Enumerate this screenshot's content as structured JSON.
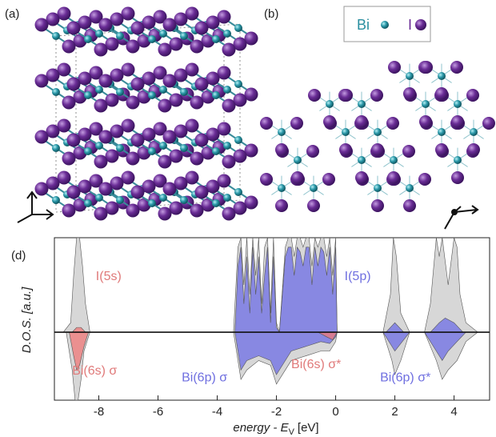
{
  "panels": {
    "a": "(a)",
    "b": "(b)",
    "d": "(d)"
  },
  "legend": {
    "bi": "Bi",
    "i": "I"
  },
  "chart_data": {
    "type": "area",
    "ylabel": "D.O.S. [a.u.]",
    "xlabel": "energy - E",
    "xlabel_sub": "V",
    "xlabel_unit": "[eV]",
    "xlim": [
      -9.5,
      5.2
    ],
    "ylim": [
      -0.72,
      1
    ],
    "xticks": [
      -8,
      -6,
      -4,
      -2,
      0,
      2,
      4
    ],
    "annotations": [
      {
        "text": "I(5s)",
        "x": -8.1,
        "y": 0.55,
        "color": "#e07a7a"
      },
      {
        "text": "Bi(6s) σ",
        "x": -8.9,
        "y": -0.45,
        "color": "#e07a7a"
      },
      {
        "text": "Bi(6p) σ",
        "x": -5.2,
        "y": -0.52,
        "color": "#6f6fe0"
      },
      {
        "text": "Bi(6s) σ*",
        "x": -1.5,
        "y": -0.38,
        "color": "#e07a7a"
      },
      {
        "text": "I(5p)",
        "x": 0.3,
        "y": 0.55,
        "color": "#6f6fe0"
      },
      {
        "text": "Bi(6p) σ*",
        "x": 1.5,
        "y": -0.52,
        "color": "#6f6fe0"
      }
    ],
    "series": [
      {
        "color": "#c9c9c9",
        "x": [
          -9.2,
          -8.95,
          -8.85,
          -8.75,
          -8.65,
          -8.55,
          -8.45,
          -8.3,
          -3.45,
          -3.3,
          -3.2,
          -3.1,
          -3.0,
          -2.9,
          -2.8,
          -2.7,
          -2.6,
          -2.5,
          -2.4,
          -2.3,
          -2.2,
          -2.1,
          -2.0,
          -1.9,
          -1.7,
          -1.6,
          -1.5,
          -1.4,
          -1.3,
          -1.2,
          -1.1,
          -1.0,
          -0.9,
          -0.8,
          -0.7,
          -0.6,
          -0.5,
          -0.4,
          -0.3,
          -0.2,
          -0.1,
          0,
          0.05,
          1.6,
          1.85,
          1.95,
          2.05,
          2.2,
          2.5,
          3.0,
          3.2,
          3.4,
          3.5,
          3.6,
          3.8,
          4.0,
          4.1,
          4.2,
          4.4,
          4.8
        ],
        "values": [
          0,
          0.1,
          0.6,
          1,
          1,
          0.7,
          0.3,
          0,
          0,
          0.9,
          1,
          0.5,
          1,
          0.4,
          1,
          0.6,
          1,
          0.3,
          0.9,
          1,
          0.2,
          1,
          0.1,
          0,
          0.9,
          1,
          1,
          0.8,
          1,
          1,
          0.9,
          1,
          1,
          0.7,
          1,
          0.9,
          1,
          1,
          0.8,
          1,
          0.6,
          1,
          0,
          0,
          0.4,
          1,
          0.8,
          0.2,
          0,
          0,
          0.3,
          1,
          0.8,
          1,
          0.5,
          1,
          0.9,
          0.4,
          0.1,
          0
        ]
      },
      {
        "color": "#c9c9c9",
        "x": [
          -9.1,
          -8.9,
          -8.8,
          -8.7,
          -8.6,
          -8.5,
          -8.3,
          -3.45,
          -3.2,
          -3.0,
          -2.6,
          -2.2,
          -2.0,
          -1.5,
          -1.0,
          -0.5,
          -0.2,
          0,
          0.05,
          1.6,
          1.9,
          2.0,
          2.2,
          2.5,
          3.0,
          3.4,
          3.6,
          3.8,
          4.1,
          4.4,
          4.8
        ],
        "values": [
          0,
          -0.4,
          -0.72,
          -0.72,
          -0.5,
          -0.2,
          0,
          0,
          -0.5,
          -0.4,
          -0.3,
          -0.35,
          -0.55,
          -0.3,
          -0.25,
          -0.2,
          -0.2,
          -0.1,
          0,
          0,
          -0.3,
          -0.45,
          -0.3,
          0,
          0,
          -0.3,
          -0.5,
          -0.4,
          -0.3,
          -0.1,
          0
        ]
      },
      {
        "color": "#6e6ee6",
        "x": [
          -3.4,
          -3.3,
          -3.2,
          -3.1,
          -3.0,
          -2.9,
          -2.8,
          -2.7,
          -2.6,
          -2.5,
          -2.4,
          -2.3,
          -2.2,
          -2.1,
          -2.0,
          -1.9,
          -1.7,
          -1.6,
          -1.5,
          -1.4,
          -1.3,
          -1.2,
          -1.1,
          -1.0,
          -0.9,
          -0.8,
          -0.7,
          -0.6,
          -0.5,
          -0.4,
          -0.3,
          -0.2,
          -0.1,
          0,
          0.05,
          1.7,
          2.0,
          2.3,
          3.2,
          3.5,
          3.7,
          4.0,
          4.3
        ],
        "values": [
          0,
          0.7,
          0.9,
          0.3,
          0.8,
          0.2,
          0.9,
          0.4,
          0.8,
          0.2,
          0.6,
          0.9,
          0.1,
          0.8,
          0.05,
          0,
          0.8,
          0.9,
          0.9,
          0.6,
          0.9,
          0.85,
          0.7,
          0.9,
          0.9,
          0.5,
          0.9,
          0.7,
          0.9,
          0.85,
          0.6,
          0.9,
          0.4,
          0.9,
          0,
          0,
          0.1,
          0,
          0,
          0.1,
          0.15,
          0.1,
          0
        ]
      },
      {
        "color": "#6e6ee6",
        "x": [
          -3.4,
          -3.2,
          -3.0,
          -2.6,
          -2.2,
          -2.0,
          -1.5,
          -1.0,
          -0.5,
          -0.2,
          0,
          0.05,
          1.6,
          1.9,
          2.0,
          2.2,
          2.5,
          3.0,
          3.4,
          3.6,
          3.8,
          4.1,
          4.4
        ],
        "values": [
          0,
          -0.4,
          -0.3,
          -0.25,
          -0.3,
          -0.45,
          -0.2,
          -0.15,
          -0.1,
          -0.12,
          -0.05,
          0,
          0,
          -0.15,
          -0.2,
          -0.12,
          0,
          0,
          -0.2,
          -0.3,
          -0.2,
          -0.1,
          0
        ]
      },
      {
        "color": "#f07878",
        "x": [
          -8.9,
          -8.75,
          -8.6,
          -8.45
        ],
        "values": [
          0,
          0.05,
          0.05,
          0
        ]
      },
      {
        "color": "#f07878",
        "x": [
          -9.0,
          -8.85,
          -8.75,
          -8.65,
          -8.5,
          -8.35,
          -0.6,
          -0.3,
          -0.1,
          0.05
        ],
        "values": [
          0,
          -0.25,
          -0.4,
          -0.35,
          -0.15,
          0,
          0,
          -0.05,
          -0.08,
          0
        ]
      }
    ]
  }
}
